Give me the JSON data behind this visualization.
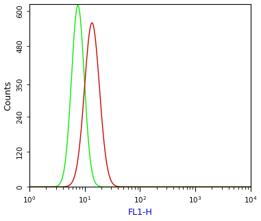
{
  "title": "",
  "xlabel": "FL1-H",
  "ylabel": "Counts",
  "xlim": [
    1,
    10000
  ],
  "ylim": [
    0,
    625
  ],
  "yticks": [
    0,
    120,
    240,
    350,
    480,
    600
  ],
  "ytick_labels": [
    "0",
    "120",
    "240",
    "350",
    "480",
    "600"
  ],
  "green_peak_x": 7.5,
  "green_peak_y": 620,
  "green_sigma": 0.115,
  "red_peak_x": 13.5,
  "red_peak_y": 560,
  "red_sigma": 0.135,
  "green_color": "#00ee00",
  "red_color": "#cc0000",
  "bg_color": "#ffffff",
  "linewidth": 1.0,
  "xlabel_fontsize": 9,
  "ylabel_fontsize": 9,
  "tick_fontsize": 7.5,
  "xlabel_color": "#0000cc",
  "ylabel_color": "#000000",
  "ytick_rotation": 90
}
